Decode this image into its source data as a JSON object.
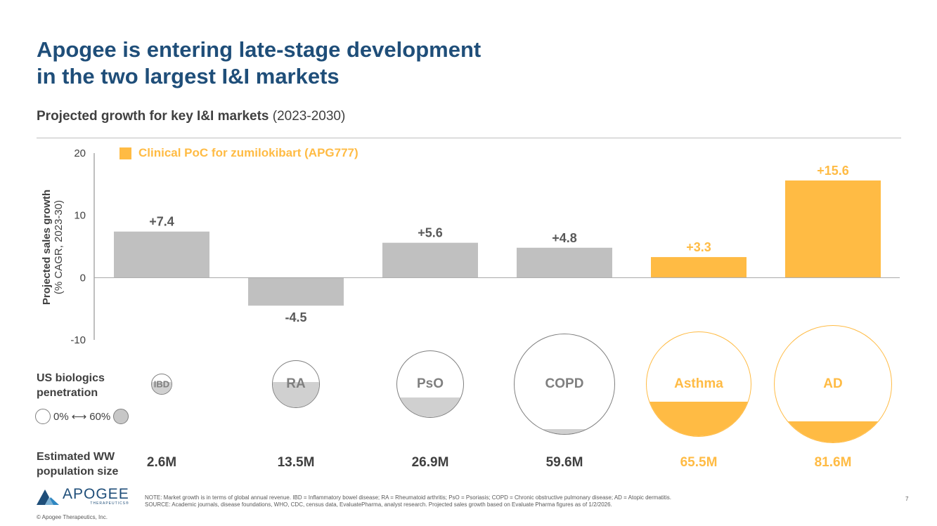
{
  "title": {
    "line1": "Apogee is entering late-stage development",
    "line2": "in the two largest I&I markets"
  },
  "subtitle": {
    "bold": "Projected growth for key I&I markets",
    "normal": " (2023-2030)"
  },
  "legend": {
    "label": "Clinical PoC for zumilokibart (APG777)"
  },
  "ylabel": {
    "main": "Projected sales growth",
    "unit": "(% CAGR, 2023-30)"
  },
  "colors": {
    "grey_bar": "#c0c0c0",
    "highlight": "#ffbb44",
    "title": "#1f4e79",
    "text": "#404040",
    "value_grey": "#595959"
  },
  "chart_data": {
    "type": "bar",
    "categories": [
      "IBD",
      "RA",
      "PsO",
      "COPD",
      "Asthma",
      "AD"
    ],
    "values": [
      7.4,
      -4.5,
      5.6,
      4.8,
      3.3,
      15.6
    ],
    "value_labels": [
      "+7.4",
      "-4.5",
      "+5.6",
      "+4.8",
      "+3.3",
      "+15.6"
    ],
    "highlighted": [
      false,
      false,
      false,
      false,
      true,
      true
    ],
    "ylim": [
      -10,
      20
    ],
    "yticks": [
      20,
      10,
      0,
      -10
    ],
    "grid": false,
    "legend_position": "top-left"
  },
  "penetration": {
    "label_line1": "US biologics",
    "label_line2": "penetration",
    "scale_low": "0%",
    "scale_arrow": "⟷",
    "scale_high": "60%",
    "items": [
      {
        "name": "IBD",
        "population_m": 2.6,
        "penetration": 0.6
      },
      {
        "name": "RA",
        "population_m": 13.5,
        "penetration": 0.55
      },
      {
        "name": "PsO",
        "population_m": 26.9,
        "penetration": 0.3
      },
      {
        "name": "COPD",
        "population_m": 59.6,
        "penetration": 0.05
      },
      {
        "name": "Asthma",
        "population_m": 65.5,
        "penetration": 0.33
      },
      {
        "name": "AD",
        "population_m": 81.6,
        "penetration": 0.18
      }
    ]
  },
  "population": {
    "label_line1": "Estimated WW",
    "label_line2": "population size",
    "values": [
      "2.6M",
      "13.5M",
      "26.9M",
      "59.6M",
      "65.5M",
      "81.6M"
    ]
  },
  "logo": {
    "name": "APOGEE",
    "sub": "THERAPEUTICS®"
  },
  "copyright": "© Apogee Therapeutics, Inc.",
  "notes": {
    "note": "NOTE: Market growth is in terms of global annual revenue. IBD = Inflammatory bowel disease; RA = Rheumatoid arthritis; PsO = Psoriasis; COPD = Chronic obstructive pulmonary disease; AD = Atopic dermatitis.",
    "source": "SOURCE: Academic journals, disease foundations, WHO, CDC, census data, EvaluatePharma, analyst research. Projected sales growth based on Evaluate Pharma figures as of 1/2/2026."
  },
  "page_number": "7"
}
